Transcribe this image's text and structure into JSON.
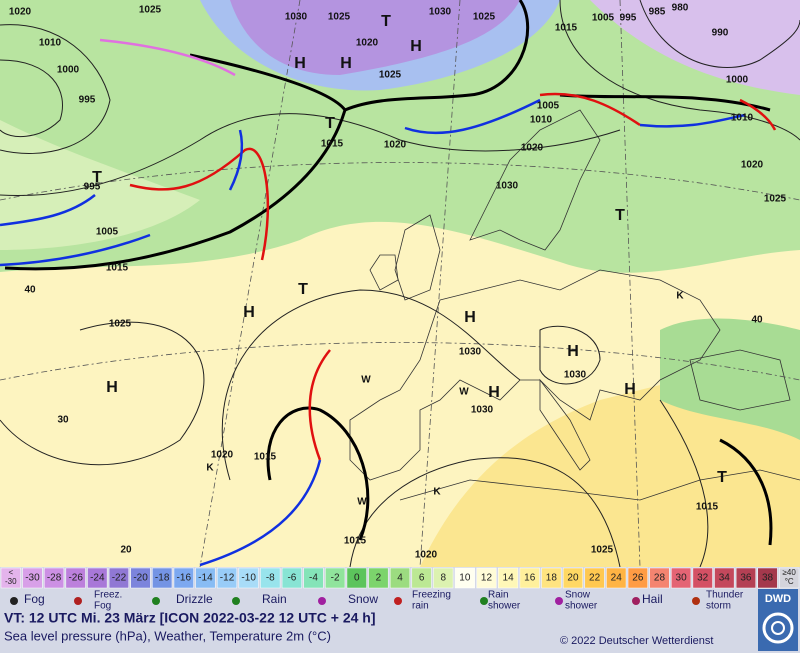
{
  "map": {
    "labels": [
      "1020",
      "1025",
      "1030",
      "1025",
      "T",
      "1030",
      "1020",
      "H",
      "1025",
      "1025",
      "1015",
      "1005",
      "995",
      "985",
      "980",
      "990",
      "1010",
      "1000",
      "995",
      "H",
      "H",
      "1000",
      "1005",
      "1010",
      "1010",
      "T",
      "1015",
      "1020",
      "1020",
      "1020",
      "T",
      "995",
      "1030",
      "1025",
      "1005",
      "T",
      "1015",
      "40",
      "T",
      "H",
      "1025",
      "H",
      "1030",
      "H",
      "1030",
      "H",
      "H",
      "1030",
      "H",
      "40",
      "30",
      "1020",
      "1015",
      "K",
      "T",
      "1015",
      "1015",
      "1020",
      "1025",
      "20",
      "K",
      "W",
      "W",
      "W",
      "K"
    ]
  },
  "color_scale": {
    "items": [
      {
        "lines": [
          "<",
          "-30"
        ],
        "color": "#e4b4ec"
      },
      {
        "lines": [
          "-30"
        ],
        "color": "#d8a0e8"
      },
      {
        "lines": [
          "-28"
        ],
        "color": "#cc90e4"
      },
      {
        "lines": [
          "-26"
        ],
        "color": "#bc80dc"
      },
      {
        "lines": [
          "-24"
        ],
        "color": "#a878d8"
      },
      {
        "lines": [
          "-22"
        ],
        "color": "#9078d4"
      },
      {
        "lines": [
          "-20"
        ],
        "color": "#7c84dc"
      },
      {
        "lines": [
          "-18"
        ],
        "color": "#7494e4"
      },
      {
        "lines": [
          "-16"
        ],
        "color": "#7ca8f0"
      },
      {
        "lines": [
          "-14"
        ],
        "color": "#88bcf4"
      },
      {
        "lines": [
          "-12"
        ],
        "color": "#98ccf8"
      },
      {
        "lines": [
          "-10"
        ],
        "color": "#a8dcf8"
      },
      {
        "lines": [
          "-8"
        ],
        "color": "#98e4ec"
      },
      {
        "lines": [
          "-6"
        ],
        "color": "#88e4d4"
      },
      {
        "lines": [
          "-4"
        ],
        "color": "#84e4b8"
      },
      {
        "lines": [
          "-2"
        ],
        "color": "#90e49c"
      },
      {
        "lines": [
          "0"
        ],
        "color": "#5cc45c"
      },
      {
        "lines": [
          "2"
        ],
        "color": "#7cd46c"
      },
      {
        "lines": [
          "4"
        ],
        "color": "#9cdc80"
      },
      {
        "lines": [
          "6"
        ],
        "color": "#bce894"
      },
      {
        "lines": [
          "8"
        ],
        "color": "#dcf2b0"
      },
      {
        "lines": [
          "10"
        ],
        "color": "#fffff0"
      },
      {
        "lines": [
          "12"
        ],
        "color": "#fffcd8"
      },
      {
        "lines": [
          "14"
        ],
        "color": "#fff8b8"
      },
      {
        "lines": [
          "16"
        ],
        "color": "#fff09c"
      },
      {
        "lines": [
          "18"
        ],
        "color": "#ffe480"
      },
      {
        "lines": [
          "20"
        ],
        "color": "#ffd864"
      },
      {
        "lines": [
          "22"
        ],
        "color": "#ffc850"
      },
      {
        "lines": [
          "24"
        ],
        "color": "#ffb444"
      },
      {
        "lines": [
          "26"
        ],
        "color": "#ff9c44"
      },
      {
        "lines": [
          "28"
        ],
        "color": "#f48470"
      },
      {
        "lines": [
          "30"
        ],
        "color": "#e46474"
      },
      {
        "lines": [
          "32"
        ],
        "color": "#d45064"
      },
      {
        "lines": [
          "34"
        ],
        "color": "#c4485c"
      },
      {
        "lines": [
          "36"
        ],
        "color": "#b44054"
      },
      {
        "lines": [
          "38"
        ],
        "color": "#a4384c"
      },
      {
        "lines": [
          "≥40",
          "°C"
        ],
        "color": "#d4d4dc"
      }
    ]
  },
  "legend": {
    "items": [
      {
        "lines": [
          "Fog"
        ]
      },
      {
        "lines": [
          "Freez.",
          "Fog"
        ]
      },
      {
        "lines": [
          "Drizzle"
        ]
      },
      {
        "lines": [
          "Rain"
        ]
      },
      {
        "lines": [
          "Snow"
        ]
      },
      {
        "lines": [
          "Freezing",
          "rain"
        ]
      },
      {
        "lines": [
          "Rain",
          "shower"
        ]
      },
      {
        "lines": [
          "Snow",
          "shower"
        ]
      },
      {
        "lines": [
          "Hail"
        ]
      },
      {
        "lines": [
          "Thunder",
          "storm"
        ]
      }
    ]
  },
  "footer": {
    "valid_time": "VT: 12 UTC Mi.  23 März [ICON 2022-03-22  12 UTC + 24 h]",
    "description": "Sea level pressure (hPa), Weather, Temperature 2m (°C)",
    "copyright": "© 2022 Deutscher Wetterdienst",
    "logo": "DWD"
  }
}
